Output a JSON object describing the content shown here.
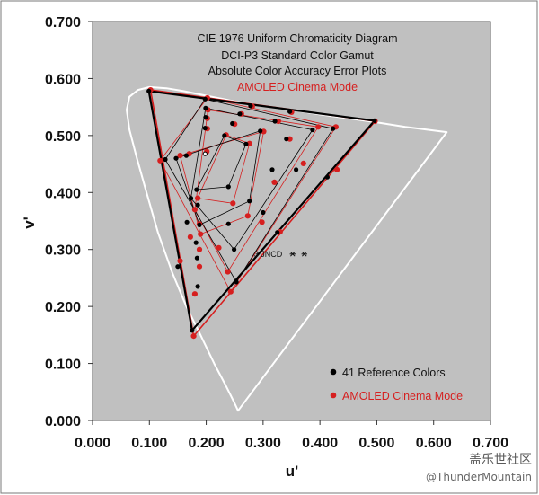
{
  "chart_data": {
    "type": "scatter",
    "title_lines": [
      "CIE 1976 Uniform Chromaticity Diagram",
      "DCI-P3 Standard Color Gamut",
      "Absolute Color Accuracy Error Plots"
    ],
    "subtitle": "AMOLED Cinema Mode",
    "xlabel": "u'",
    "ylabel": "v'",
    "xlim": [
      0,
      0.7
    ],
    "ylim": [
      0,
      0.7
    ],
    "x_ticks": [
      "0.000",
      "0.100",
      "0.200",
      "0.300",
      "0.400",
      "0.500",
      "0.600",
      "0.700"
    ],
    "y_ticks": [
      "0.000",
      "0.100",
      "0.200",
      "0.300",
      "0.400",
      "0.500",
      "0.600",
      "0.700"
    ],
    "annotation": "3 JNCD",
    "annotation_pos": [
      0.352,
      0.292
    ],
    "colors": {
      "plot_bg": "#c0c0c0",
      "reference": "#000000",
      "measured": "#d61f1f",
      "locus": "#ffffff"
    },
    "spectral_locus": [
      [
        0.256,
        0.017
      ],
      [
        0.25,
        0.03
      ],
      [
        0.235,
        0.06
      ],
      [
        0.214,
        0.1
      ],
      [
        0.19,
        0.15
      ],
      [
        0.165,
        0.2
      ],
      [
        0.14,
        0.26
      ],
      [
        0.115,
        0.33
      ],
      [
        0.095,
        0.4
      ],
      [
        0.078,
        0.46
      ],
      [
        0.065,
        0.51
      ],
      [
        0.06,
        0.545
      ],
      [
        0.065,
        0.568
      ],
      [
        0.08,
        0.58
      ],
      [
        0.1,
        0.585
      ],
      [
        0.13,
        0.583
      ],
      [
        0.16,
        0.578
      ],
      [
        0.2,
        0.57
      ],
      [
        0.25,
        0.56
      ],
      [
        0.3,
        0.552
      ],
      [
        0.35,
        0.545
      ],
      [
        0.4,
        0.537
      ],
      [
        0.45,
        0.53
      ],
      [
        0.5,
        0.523
      ],
      [
        0.55,
        0.515
      ],
      [
        0.623,
        0.506
      ]
    ],
    "gamut_triangle": {
      "red": [
        0.496,
        0.526
      ],
      "green": [
        0.099,
        0.578
      ],
      "blue": [
        0.175,
        0.158
      ]
    },
    "white_point": [
      0.198,
      0.468
    ],
    "series": [
      {
        "name": "41 Reference Colors",
        "points": [
          [
            0.496,
            0.526
          ],
          [
            0.099,
            0.578
          ],
          [
            0.175,
            0.158
          ],
          [
            0.198,
            0.468
          ],
          [
            0.198,
            0.564
          ],
          [
            0.278,
            0.552
          ],
          [
            0.347,
            0.542
          ],
          [
            0.423,
            0.512
          ],
          [
            0.413,
            0.427
          ],
          [
            0.325,
            0.33
          ],
          [
            0.253,
            0.243
          ],
          [
            0.15,
            0.27
          ],
          [
            0.166,
            0.348
          ],
          [
            0.128,
            0.458
          ],
          [
            0.199,
            0.548
          ],
          [
            0.259,
            0.538
          ],
          [
            0.321,
            0.525
          ],
          [
            0.387,
            0.51
          ],
          [
            0.358,
            0.44
          ],
          [
            0.3,
            0.365
          ],
          [
            0.249,
            0.3
          ],
          [
            0.185,
            0.235
          ],
          [
            0.182,
            0.312
          ],
          [
            0.173,
            0.39
          ],
          [
            0.147,
            0.46
          ],
          [
            0.199,
            0.532
          ],
          [
            0.246,
            0.521
          ],
          [
            0.295,
            0.508
          ],
          [
            0.341,
            0.494
          ],
          [
            0.316,
            0.44
          ],
          [
            0.276,
            0.385
          ],
          [
            0.239,
            0.345
          ],
          [
            0.184,
            0.285
          ],
          [
            0.188,
            0.343
          ],
          [
            0.183,
            0.405
          ],
          [
            0.165,
            0.465
          ],
          [
            0.198,
            0.513
          ],
          [
            0.232,
            0.5
          ],
          [
            0.27,
            0.485
          ],
          [
            0.239,
            0.41
          ],
          [
            0.185,
            0.378
          ]
        ]
      },
      {
        "name": "AMOLED Cinema Mode",
        "points": [
          [
            0.497,
            0.525
          ],
          [
            0.102,
            0.58
          ],
          [
            0.178,
            0.148
          ],
          [
            0.201,
            0.472
          ],
          [
            0.202,
            0.566
          ],
          [
            0.281,
            0.551
          ],
          [
            0.35,
            0.541
          ],
          [
            0.428,
            0.515
          ],
          [
            0.43,
            0.44
          ],
          [
            0.33,
            0.331
          ],
          [
            0.243,
            0.226
          ],
          [
            0.154,
            0.28
          ],
          [
            0.172,
            0.322
          ],
          [
            0.119,
            0.456
          ],
          [
            0.203,
            0.545
          ],
          [
            0.262,
            0.538
          ],
          [
            0.327,
            0.525
          ],
          [
            0.397,
            0.515
          ],
          [
            0.371,
            0.451
          ],
          [
            0.298,
            0.348
          ],
          [
            0.238,
            0.261
          ],
          [
            0.18,
            0.222
          ],
          [
            0.188,
            0.3
          ],
          [
            0.18,
            0.37
          ],
          [
            0.154,
            0.465
          ],
          [
            0.202,
            0.53
          ],
          [
            0.25,
            0.52
          ],
          [
            0.301,
            0.507
          ],
          [
            0.347,
            0.494
          ],
          [
            0.32,
            0.418
          ],
          [
            0.273,
            0.359
          ],
          [
            0.222,
            0.303
          ],
          [
            0.188,
            0.27
          ],
          [
            0.19,
            0.327
          ],
          [
            0.185,
            0.39
          ],
          [
            0.17,
            0.468
          ],
          [
            0.202,
            0.512
          ],
          [
            0.235,
            0.501
          ],
          [
            0.276,
            0.486
          ],
          [
            0.247,
            0.381
          ],
          [
            0.188,
            0.345
          ]
        ]
      }
    ],
    "outlines": {
      "reference": [
        [
          0,
          1,
          2
        ],
        [
          4,
          7,
          10,
          13
        ],
        [
          14,
          17,
          20,
          23
        ],
        [
          24,
          27,
          30,
          33
        ],
        [
          34,
          37,
          38,
          39
        ]
      ],
      "measured": [
        [
          0,
          1,
          2
        ],
        [
          4,
          7,
          10,
          13
        ],
        [
          14,
          17,
          20,
          23
        ],
        [
          24,
          27,
          30,
          33
        ],
        [
          34,
          37,
          38,
          39
        ]
      ]
    },
    "legend": [
      {
        "label": "41 Reference Colors",
        "color": "#000000"
      },
      {
        "label": "AMOLED Cinema Mode",
        "color": "#d61f1f"
      }
    ]
  },
  "watermark": {
    "line1": "盖乐世社区",
    "line2": "@ThunderMountain"
  }
}
